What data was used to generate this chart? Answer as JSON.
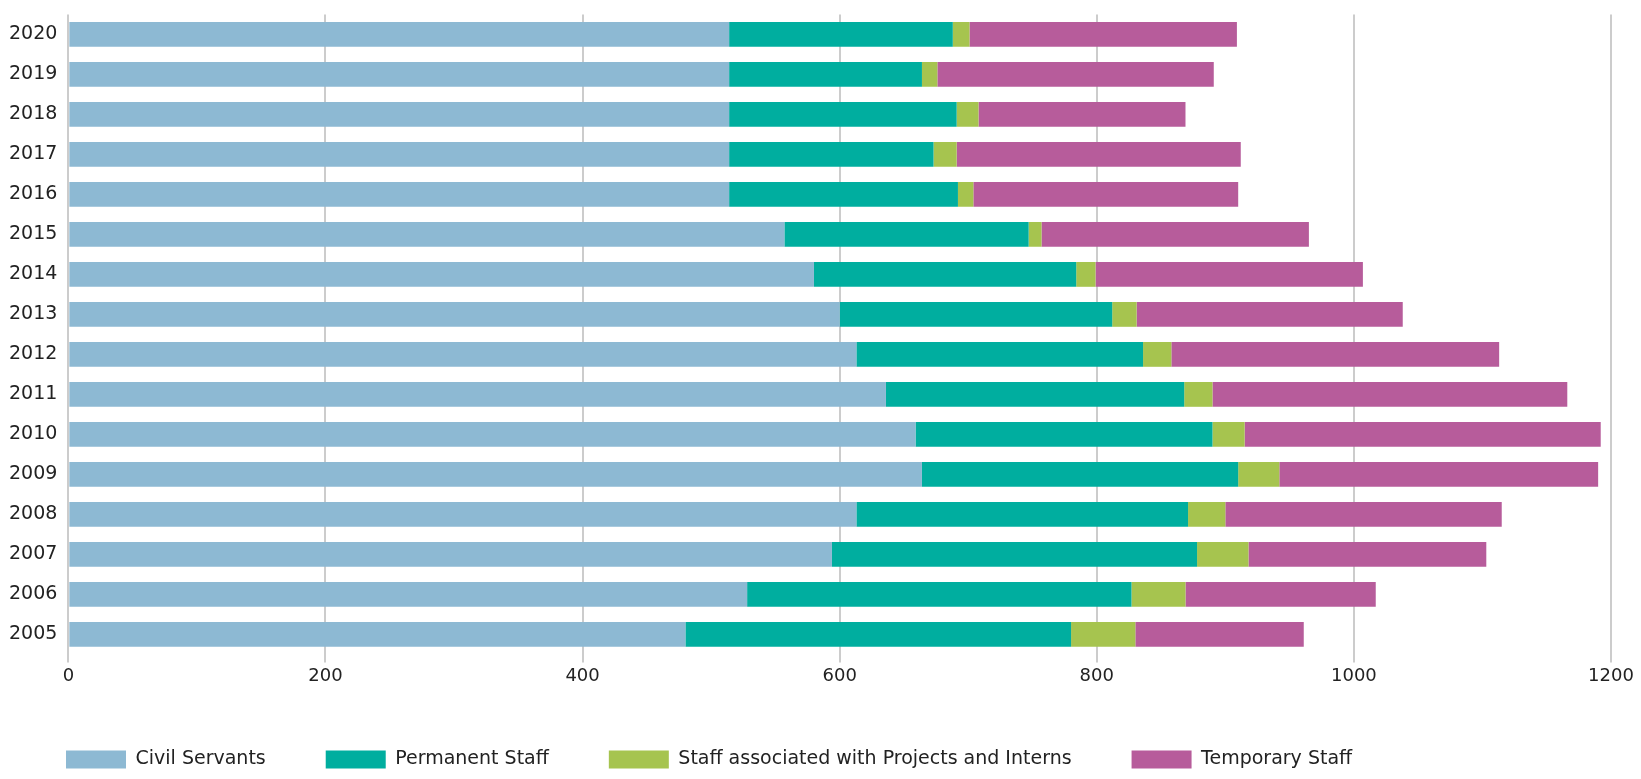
{
  "chart_data": {
    "type": "bar",
    "orientation": "horizontal",
    "stacked": true,
    "categories": [
      "2020",
      "2019",
      "2018",
      "2017",
      "2016",
      "2015",
      "2014",
      "2013",
      "2012",
      "2011",
      "2010",
      "2009",
      "2008",
      "2007",
      "2006",
      "2005"
    ],
    "series": [
      {
        "name": "Civil Servants",
        "color": "#8db9d3",
        "values": [
          514,
          514,
          514,
          514,
          514,
          557,
          580,
          600,
          613,
          636,
          659,
          664,
          613,
          594,
          528,
          480
        ]
      },
      {
        "name": "Permanent Staff",
        "color": "#00ae9f",
        "values": [
          174,
          150,
          177,
          159,
          178,
          190,
          204,
          212,
          223,
          232,
          231,
          246,
          258,
          284,
          299,
          300
        ]
      },
      {
        "name": "Staff associated with Projects and Interns",
        "color": "#a6c44f",
        "values": [
          13,
          12,
          17,
          18,
          12,
          10,
          15,
          19,
          22,
          22,
          25,
          32,
          29,
          40,
          42,
          50
        ]
      },
      {
        "name": "Temporary Staff",
        "color": "#b75c9b",
        "values": [
          208,
          215,
          161,
          221,
          206,
          208,
          208,
          207,
          255,
          276,
          277,
          248,
          215,
          185,
          148,
          131
        ]
      }
    ],
    "xlim": [
      0,
      1200
    ],
    "xticks": [
      0,
      200,
      400,
      600,
      800,
      1000,
      1200
    ],
    "grid": "x",
    "legend": "bottom"
  }
}
